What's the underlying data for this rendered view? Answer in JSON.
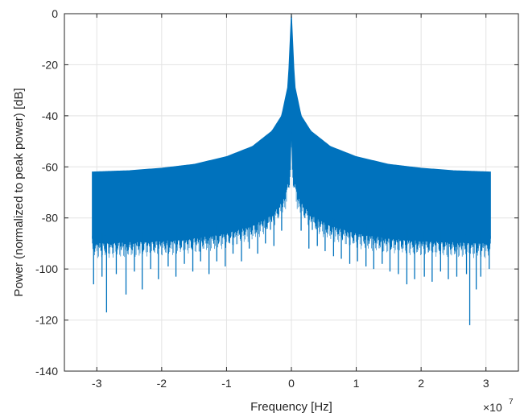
{
  "chart_data": {
    "type": "line",
    "title": "",
    "xlabel": "Frequency [Hz]",
    "ylabel": "Power (normalized to peak power) [dB]",
    "x_exponent_label": {
      "base": "×10",
      "exponent": "7"
    },
    "xlim": [
      -3.5,
      3.5
    ],
    "x_scale_factor": 10000000,
    "ylim": [
      -140,
      0
    ],
    "xticks": [
      -3,
      -2,
      -1,
      0,
      1,
      2,
      3
    ],
    "xtick_labels": [
      "-3",
      "-2",
      "-1",
      "0",
      "1",
      "2",
      "3"
    ],
    "yticks": [
      0,
      -20,
      -40,
      -60,
      -80,
      -100,
      -120,
      -140
    ],
    "ytick_labels": [
      "0",
      "-20",
      "-40",
      "-60",
      "-80",
      "-100",
      "-120",
      "-140"
    ],
    "grid": true,
    "series": [
      {
        "color": "#0072BD",
        "x_range": [
          -3.07,
          3.07
        ],
        "upper_envelope": {
          "x": [
            -3.07,
            -2.5,
            -2.0,
            -1.5,
            -1.0,
            -0.6,
            -0.3,
            -0.15,
            -0.05,
            0,
            0.05,
            0.15,
            0.3,
            0.6,
            1.0,
            1.5,
            2.0,
            2.5,
            3.07
          ],
          "y": [
            -62,
            -61.5,
            -60.5,
            -59,
            -56,
            -52,
            -46,
            -40,
            -28,
            0,
            -28,
            -40,
            -46,
            -52,
            -56,
            -59,
            -60.5,
            -61.5,
            -62
          ]
        },
        "lower_envelope": {
          "x": [
            -3.07,
            -2.5,
            -2.0,
            -1.5,
            -1.0,
            -0.6,
            -0.3,
            -0.1,
            -0.02,
            0,
            0.02,
            0.1,
            0.3,
            0.6,
            1.0,
            1.5,
            2.0,
            2.5,
            3.07
          ],
          "y": [
            -88,
            -87.5,
            -87,
            -86,
            -84,
            -81,
            -77,
            -70,
            -60,
            -45,
            -60,
            -70,
            -77,
            -81,
            -84,
            -86,
            -87,
            -87.5,
            -88
          ]
        },
        "deep_nulls": {
          "x": [
            -3.05,
            -2.92,
            -2.85,
            -2.7,
            -2.55,
            -2.42,
            -2.3,
            -2.17,
            -2.05,
            -1.9,
            -1.78,
            -1.65,
            -1.52,
            -1.4,
            -1.27,
            -1.15,
            -1.02,
            -0.9,
            -0.77,
            -0.65,
            -0.52,
            -0.4,
            -0.27,
            -0.15,
            0.15,
            0.27,
            0.4,
            0.52,
            0.65,
            0.77,
            0.9,
            1.02,
            1.15,
            1.27,
            1.4,
            1.52,
            1.65,
            1.78,
            1.9,
            2.05,
            2.17,
            2.3,
            2.42,
            2.55,
            2.7,
            2.75,
            2.85,
            2.92,
            3.05
          ],
          "y": [
            -106,
            -103,
            -117,
            -102,
            -110,
            -101,
            -108,
            -100,
            -104,
            -99,
            -103,
            -98,
            -101,
            -97,
            -102,
            -97,
            -99,
            -94,
            -97,
            -92,
            -94,
            -90,
            -91,
            -85,
            -85,
            -92,
            -91,
            -93,
            -95,
            -96,
            -98,
            -97,
            -99,
            -100,
            -98,
            -101,
            -102,
            -106,
            -104,
            -103,
            -105,
            -101,
            -104,
            -103,
            -102,
            -122,
            -108,
            -103,
            -100
          ]
        }
      }
    ]
  }
}
